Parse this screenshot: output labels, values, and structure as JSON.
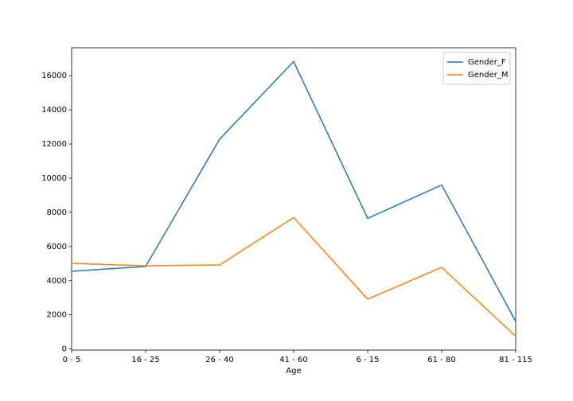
{
  "chart_data": {
    "type": "line",
    "x_label": "Age",
    "categories": [
      "0 - 5",
      "16 - 25",
      "26 - 40",
      "41 - 60",
      "6 - 15",
      "61 - 80",
      "81 - 115"
    ],
    "series": [
      {
        "name": "Gender_F",
        "color": "#1f77b4",
        "values": [
          4550,
          4830,
          12290,
          16835,
          7650,
          9600,
          1620
        ]
      },
      {
        "name": "Gender_M",
        "color": "#ff7f0e",
        "values": [
          5010,
          4870,
          4920,
          7700,
          2920,
          4780,
          740
        ]
      }
    ],
    "ylim": [
      -65,
      17640
    ],
    "yticks": [
      0,
      2000,
      4000,
      6000,
      8000,
      10000,
      12000,
      14000,
      16000
    ],
    "legend": "upper right"
  }
}
